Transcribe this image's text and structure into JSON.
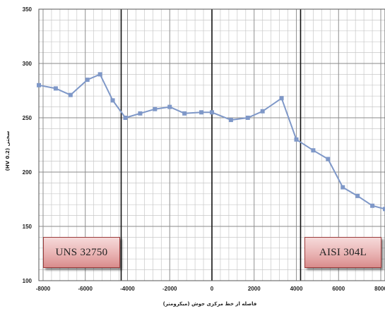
{
  "chart_data": {
    "type": "line",
    "title": "",
    "xlabel": "فاصله از خط مرکزی جوش (میکرومتر)",
    "ylabel": "سختی (HV 0.2)",
    "xlim": [
      -8200,
      8200
    ],
    "ylim": [
      100,
      350
    ],
    "xticks": [
      -8000,
      -6000,
      -4000,
      -2000,
      0,
      2000,
      4000,
      6000,
      8000
    ],
    "yticks": [
      100,
      150,
      200,
      250,
      300,
      350
    ],
    "grid": true,
    "series": [
      {
        "color": "#7f98c8",
        "x": [
          -8200,
          -7400,
          -6700,
          -5900,
          -5300,
          -4700,
          -4100,
          -3400,
          -2700,
          -2000,
          -1300,
          -500,
          0,
          900,
          1700,
          2400,
          3300,
          4000,
          4800,
          5500,
          6200,
          6900,
          7600,
          8200
        ],
        "y": [
          280,
          277,
          271,
          285,
          290,
          266,
          250,
          254,
          258,
          260,
          254,
          255,
          255,
          248,
          250,
          256,
          268,
          230,
          220,
          212,
          186,
          178,
          169,
          166
        ]
      }
    ],
    "boundaries_x": [
      -4300,
      0,
      4200
    ],
    "annotations": {
      "left_material": "UNS 32750",
      "right_material": "AISI 304L"
    }
  }
}
